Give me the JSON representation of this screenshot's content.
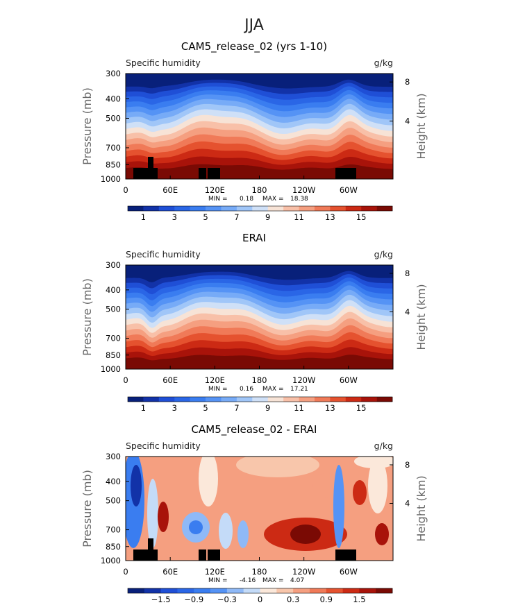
{
  "title": "JJA",
  "colors": {
    "full": [
      "#08207a",
      "#1232a8",
      "#1f4fd6",
      "#2a66e6",
      "#3a7df0",
      "#5593f5",
      "#77abf7",
      "#a0c6f8",
      "#cfe0f7",
      "#f7e3d6",
      "#f8c0a8",
      "#f59f80",
      "#f07a58",
      "#e5522f",
      "#cc2a14",
      "#a8130a",
      "#7a0a04"
    ],
    "diff": [
      "#08207a",
      "#1232a8",
      "#1f4fd6",
      "#2a66e6",
      "#3a7df0",
      "#5593f5",
      "#8fb9f7",
      "#c4dbf8",
      "#fbe8da",
      "#f8c6ab",
      "#f59f80",
      "#f07a58",
      "#e5522f",
      "#cc2a14",
      "#a8130a",
      "#7a0a04"
    ]
  },
  "panels": [
    {
      "title": "CAM5_release_02 (yrs 1-10)",
      "left_label": "Specific humidity",
      "units": "g/kg",
      "ylabel": "Pressure (mb)",
      "y2label": "Height (km)",
      "y_ticks": [
        "300",
        "400",
        "500",
        "700",
        "850",
        "1000"
      ],
      "y2_ticks": [
        "8",
        "4"
      ],
      "x_ticks": [
        "0",
        "60E",
        "120E",
        "180",
        "120W",
        "60W"
      ],
      "min_label": "MIN =",
      "min_value": "0.18",
      "max_label": "MAX =",
      "max_value": "18.38",
      "colorbar_labels": [
        "1",
        "3",
        "5",
        "7",
        "9",
        "11",
        "13",
        "15"
      ],
      "topography": true,
      "chart_data": {
        "type": "heatmap",
        "field": "Specific humidity",
        "units": "g/kg",
        "x_range": [
          0,
          360
        ],
        "y_range_mb": [
          1000,
          300
        ],
        "levels": [
          0,
          1,
          2,
          3,
          4,
          5,
          6,
          7,
          8,
          9,
          10,
          11,
          12,
          13,
          14,
          15,
          16,
          17
        ],
        "min": 0.18,
        "max": 18.38
      }
    },
    {
      "title": "ERAI",
      "left_label": "Specific humidity",
      "units": "g/kg",
      "ylabel": "Pressure (mb)",
      "y2label": "Height (km)",
      "y_ticks": [
        "300",
        "400",
        "500",
        "700",
        "850",
        "1000"
      ],
      "y2_ticks": [
        "8",
        "4"
      ],
      "x_ticks": [
        "0",
        "60E",
        "120E",
        "180",
        "120W",
        "60W"
      ],
      "min_label": "MIN =",
      "min_value": "0.16",
      "max_label": "MAX =",
      "max_value": "17.21",
      "colorbar_labels": [
        "1",
        "3",
        "5",
        "7",
        "9",
        "11",
        "13",
        "15"
      ],
      "topography": false,
      "chart_data": {
        "type": "heatmap",
        "field": "Specific humidity",
        "units": "g/kg",
        "x_range": [
          0,
          360
        ],
        "y_range_mb": [
          1000,
          300
        ],
        "levels": [
          0,
          1,
          2,
          3,
          4,
          5,
          6,
          7,
          8,
          9,
          10,
          11,
          12,
          13,
          14,
          15,
          16,
          17
        ],
        "min": 0.16,
        "max": 17.21
      }
    },
    {
      "title": "CAM5_release_02 - ERAI",
      "left_label": "Specific humidity",
      "units": "g/kg",
      "ylabel": "Pressure (mb)",
      "y2label": "Height (km)",
      "y_ticks": [
        "300",
        "400",
        "500",
        "700",
        "850",
        "1000"
      ],
      "y2_ticks": [
        "8",
        "4"
      ],
      "x_ticks": [
        "0",
        "60E",
        "120E",
        "180",
        "120W",
        "60W"
      ],
      "min_label": "MIN =",
      "min_value": "-4.16",
      "max_label": "MAX =",
      "max_value": "4.07",
      "colorbar_labels": [
        "−1.5",
        "−0.9",
        "−0.3",
        "0",
        "0.3",
        "0.9",
        "1.5"
      ],
      "topography": true,
      "chart_data": {
        "type": "heatmap",
        "field": "Specific humidity difference",
        "units": "g/kg",
        "x_range": [
          0,
          360
        ],
        "y_range_mb": [
          1000,
          300
        ],
        "levels": [
          -2.1,
          -1.8,
          -1.5,
          -1.2,
          -0.9,
          -0.6,
          -0.3,
          0,
          0.3,
          0.6,
          0.9,
          1.2,
          1.5,
          1.8,
          2.1
        ],
        "min": -4.16,
        "max": 4.07
      }
    }
  ]
}
